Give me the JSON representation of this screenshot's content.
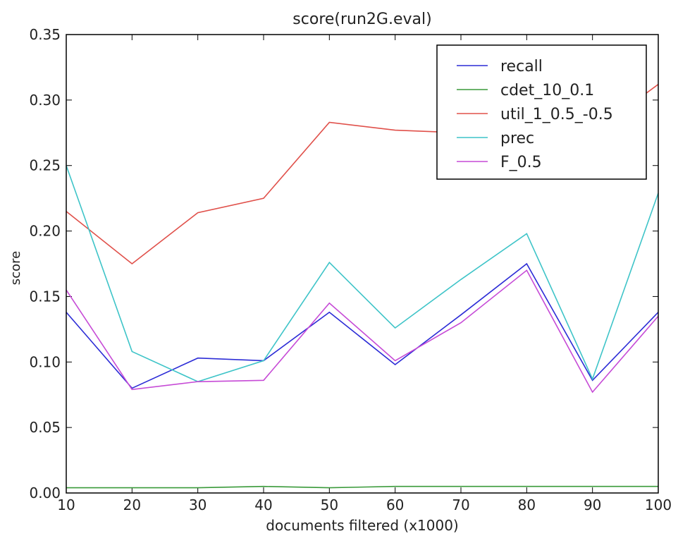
{
  "chart_data": {
    "type": "line",
    "title": "score(run2G.eval)",
    "xlabel": "documents filtered (x1000)",
    "ylabel": "score",
    "xlim": [
      10,
      100
    ],
    "ylim": [
      0.0,
      0.35
    ],
    "x": [
      10,
      20,
      30,
      40,
      50,
      60,
      70,
      80,
      90,
      100
    ],
    "xticks": [
      "10",
      "20",
      "30",
      "40",
      "50",
      "60",
      "70",
      "80",
      "90",
      "100"
    ],
    "yticks": [
      "0.00",
      "0.05",
      "0.10",
      "0.15",
      "0.20",
      "0.25",
      "0.30",
      "0.35"
    ],
    "legend_position": "top-right",
    "grid": false,
    "series": [
      {
        "name": "recall",
        "color": "#2b2bd6",
        "values": [
          0.138,
          0.08,
          0.103,
          0.101,
          0.138,
          0.098,
          0.136,
          0.175,
          0.086,
          0.138
        ]
      },
      {
        "name": "cdet_10_0.1",
        "color": "#3a9a3a",
        "values": [
          0.004,
          0.004,
          0.004,
          0.005,
          0.004,
          0.005,
          0.005,
          0.005,
          0.005,
          0.005
        ]
      },
      {
        "name": "util_1_0.5_-0.5",
        "color": "#e0504a",
        "values": [
          0.215,
          0.175,
          0.214,
          0.225,
          0.283,
          0.277,
          0.275,
          0.281,
          0.275,
          0.312
        ]
      },
      {
        "name": "prec",
        "color": "#3ec4c8",
        "values": [
          0.25,
          0.108,
          0.085,
          0.101,
          0.176,
          0.126,
          0.163,
          0.198,
          0.087,
          0.229
        ]
      },
      {
        "name": "F_0.5",
        "color": "#c64ad6",
        "values": [
          0.155,
          0.079,
          0.085,
          0.086,
          0.145,
          0.101,
          0.13,
          0.17,
          0.077,
          0.135
        ]
      }
    ]
  }
}
